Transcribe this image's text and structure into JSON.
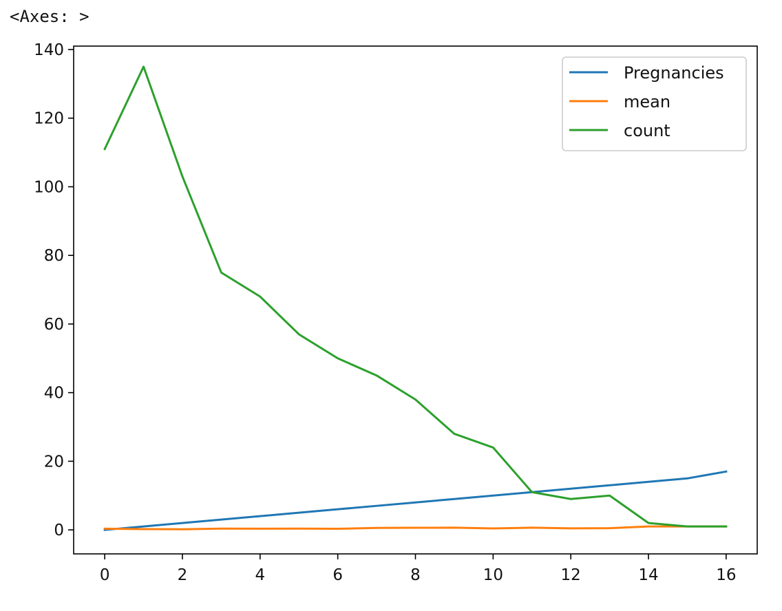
{
  "output": {
    "repr_text": "<Axes: >"
  },
  "chart_data": {
    "type": "line",
    "title": "",
    "xlabel": "",
    "ylabel": "",
    "x": [
      0,
      1,
      2,
      3,
      4,
      5,
      6,
      7,
      8,
      9,
      10,
      11,
      12,
      13,
      14,
      15,
      16
    ],
    "xlim": [
      -0.8,
      16.8
    ],
    "ylim": [
      -7,
      141
    ],
    "xticks": [
      0,
      2,
      4,
      6,
      8,
      10,
      12,
      14,
      16
    ],
    "yticks": [
      0,
      20,
      40,
      60,
      80,
      100,
      120,
      140
    ],
    "grid": false,
    "legend_position": "top-right",
    "series": [
      {
        "name": "Pregnancies",
        "color": "#1f77b4",
        "values": [
          0,
          1,
          2,
          3,
          4,
          5,
          6,
          7,
          8,
          9,
          10,
          11,
          12,
          13,
          14,
          15,
          17
        ]
      },
      {
        "name": "mean",
        "color": "#ff7f0e",
        "values": [
          0.34,
          0.21,
          0.18,
          0.36,
          0.34,
          0.37,
          0.32,
          0.56,
          0.61,
          0.64,
          0.42,
          0.64,
          0.44,
          0.5,
          1.0,
          1.0,
          1.0
        ]
      },
      {
        "name": "count",
        "color": "#2ca02c",
        "values": [
          111,
          135,
          103,
          75,
          68,
          57,
          50,
          45,
          38,
          28,
          24,
          11,
          9,
          10,
          2,
          1,
          1
        ]
      }
    ]
  }
}
